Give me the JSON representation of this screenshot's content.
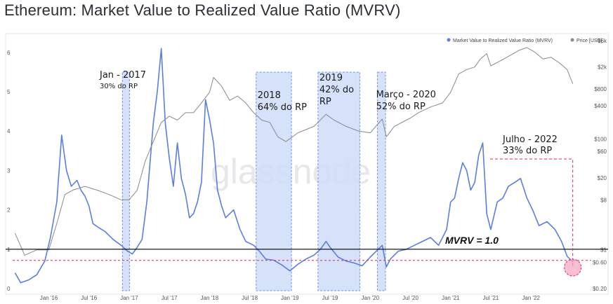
{
  "title": "Ethereum: Market Value to Realized Value Ratio (MVRV)",
  "watermark": "glassnode",
  "colors": {
    "mvrv": "#5b7fe0",
    "price": "#8a8a8a",
    "highlight_fill": "#cfdcf9",
    "highlight_border": "#6f95ea",
    "dashed_red": "#e0245e",
    "baseline": "#000000"
  },
  "chart_data": {
    "type": "line",
    "legend": {
      "placement": "top-right",
      "items": [
        {
          "label": "Market Value to Realized Value Ratio (MVRV)",
          "color": "#5b7fe0"
        },
        {
          "label": "Price [USD]",
          "color": "#8a8a8a"
        }
      ]
    },
    "x_ticks": [
      "Jan '16",
      "Jul '16",
      "Jan '17",
      "Jul '17",
      "Jan '18",
      "Jul '18",
      "Jan '19",
      "Jul '19",
      "Jan '20",
      "Jul '20",
      "Jan '21",
      "Jul '21",
      "Jan '22"
    ],
    "x_range": [
      2015.55,
      2022.75
    ],
    "y_left": {
      "ticks": [
        "0",
        "1",
        "2",
        "3",
        "4",
        "5",
        "6"
      ],
      "range": [
        0,
        6.3
      ]
    },
    "y_right": {
      "scale": "log",
      "ticks": [
        "$6k",
        "$2k",
        "$800",
        "$400",
        "$100",
        "$60",
        "$20",
        "$8",
        "$1",
        "$0.60",
        "$0.20"
      ],
      "range": [
        0.2,
        6000
      ]
    },
    "series": [
      {
        "name": "Market Value to Realized Value Ratio (MVRV)",
        "axis": "left",
        "x": [
          2015.58,
          2015.65,
          2015.75,
          2015.85,
          2015.95,
          2016.02,
          2016.1,
          2016.16,
          2016.22,
          2016.28,
          2016.35,
          2016.4,
          2016.45,
          2016.5,
          2016.55,
          2016.62,
          2016.7,
          2016.8,
          2016.9,
          2016.98,
          2017.04,
          2017.1,
          2017.16,
          2017.22,
          2017.26,
          2017.3,
          2017.35,
          2017.4,
          2017.45,
          2017.5,
          2017.55,
          2017.6,
          2017.65,
          2017.7,
          2017.75,
          2017.8,
          2017.85,
          2017.9,
          2017.95,
          2018.0,
          2018.05,
          2018.1,
          2018.15,
          2018.2,
          2018.3,
          2018.38,
          2018.45,
          2018.55,
          2018.62,
          2018.7,
          2018.8,
          2018.9,
          2019.0,
          2019.1,
          2019.2,
          2019.3,
          2019.38,
          2019.45,
          2019.5,
          2019.6,
          2019.7,
          2019.8,
          2019.9,
          2020.0,
          2020.1,
          2020.15,
          2020.2,
          2020.25,
          2020.35,
          2020.45,
          2020.55,
          2020.65,
          2020.75,
          2020.85,
          2020.95,
          2021.0,
          2021.05,
          2021.1,
          2021.15,
          2021.2,
          2021.25,
          2021.3,
          2021.35,
          2021.4,
          2021.45,
          2021.5,
          2021.58,
          2021.65,
          2021.72,
          2021.8,
          2021.87,
          2021.95,
          2022.02,
          2022.1,
          2022.2,
          2022.3,
          2022.38,
          2022.45,
          2022.52
        ],
        "y": [
          0.4,
          0.15,
          0.22,
          0.35,
          0.7,
          1.3,
          2.2,
          3.9,
          3.0,
          2.6,
          2.75,
          2.5,
          2.35,
          2.1,
          1.65,
          1.55,
          1.45,
          1.25,
          1.1,
          0.95,
          0.88,
          1.05,
          1.25,
          2.2,
          3.2,
          4.2,
          5.0,
          6.1,
          4.2,
          3.3,
          2.6,
          3.7,
          2.8,
          2.4,
          1.8,
          1.9,
          2.2,
          2.7,
          4.8,
          4.3,
          3.7,
          2.5,
          2.1,
          1.8,
          2.0,
          1.5,
          1.2,
          1.1,
          0.95,
          0.75,
          0.72,
          0.6,
          0.45,
          0.62,
          0.75,
          0.85,
          1.0,
          1.2,
          1.05,
          0.8,
          0.7,
          0.65,
          0.58,
          0.8,
          1.0,
          1.1,
          0.55,
          0.75,
          0.95,
          1.0,
          1.1,
          1.2,
          1.3,
          1.1,
          1.5,
          2.2,
          2.3,
          2.8,
          3.2,
          3.0,
          2.5,
          2.7,
          3.4,
          3.7,
          1.9,
          1.5,
          2.2,
          2.3,
          2.6,
          2.7,
          2.8,
          2.3,
          2.0,
          1.6,
          1.7,
          1.5,
          1.2,
          0.82,
          0.68
        ]
      },
      {
        "name": "Price [USD]",
        "axis": "right",
        "x": [
          2015.58,
          2015.7,
          2015.85,
          2016.0,
          2016.1,
          2016.2,
          2016.3,
          2016.45,
          2016.6,
          2016.75,
          2016.9,
          2017.0,
          2017.1,
          2017.2,
          2017.3,
          2017.4,
          2017.5,
          2017.6,
          2017.7,
          2017.8,
          2017.9,
          2018.0,
          2018.05,
          2018.15,
          2018.25,
          2018.35,
          2018.45,
          2018.55,
          2018.65,
          2018.75,
          2018.85,
          2018.95,
          2019.1,
          2019.3,
          2019.45,
          2019.55,
          2019.7,
          2019.85,
          2020.0,
          2020.15,
          2020.2,
          2020.3,
          2020.5,
          2020.6,
          2020.75,
          2020.9,
          2021.0,
          2021.1,
          2021.2,
          2021.3,
          2021.37,
          2021.45,
          2021.5,
          2021.6,
          2021.7,
          2021.85,
          2021.95,
          2022.05,
          2022.15,
          2022.25,
          2022.35,
          2022.45,
          2022.52
        ],
        "y": [
          2,
          0.8,
          1.0,
          1.0,
          3,
          10,
          12,
          14,
          12,
          10,
          8,
          8,
          12,
          40,
          90,
          200,
          260,
          220,
          300,
          300,
          450,
          700,
          1300,
          900,
          500,
          600,
          450,
          300,
          220,
          200,
          110,
          90,
          130,
          170,
          280,
          220,
          170,
          140,
          130,
          230,
          110,
          170,
          240,
          300,
          380,
          450,
          700,
          1500,
          1800,
          2000,
          2800,
          3500,
          2100,
          2500,
          3000,
          4000,
          4500,
          3700,
          2800,
          3000,
          2400,
          1800,
          1000
        ]
      }
    ],
    "reference_lines": [
      {
        "label": "MVRV = 1.0",
        "value": 1.0
      }
    ],
    "highlight_ranges": [
      {
        "x": [
          2016.94,
          2016.98
        ],
        "line1": "Jan - 2017",
        "line2": "30% do RP"
      },
      {
        "x": [
          2018.58,
          2019.02
        ],
        "line1": "2018",
        "line2": "64% do RP"
      },
      {
        "x": [
          2019.35,
          2019.87
        ],
        "line1": "2019",
        "line2": "42% do",
        "line3": "RP"
      },
      {
        "x": [
          2020.09,
          2020.19
        ],
        "line1": "Março - 2020",
        "line2": "52% do RP"
      }
    ],
    "callouts": [
      {
        "x": 2022.52,
        "line1": "Julho - 2022",
        "line2": "33% do RP"
      }
    ]
  }
}
